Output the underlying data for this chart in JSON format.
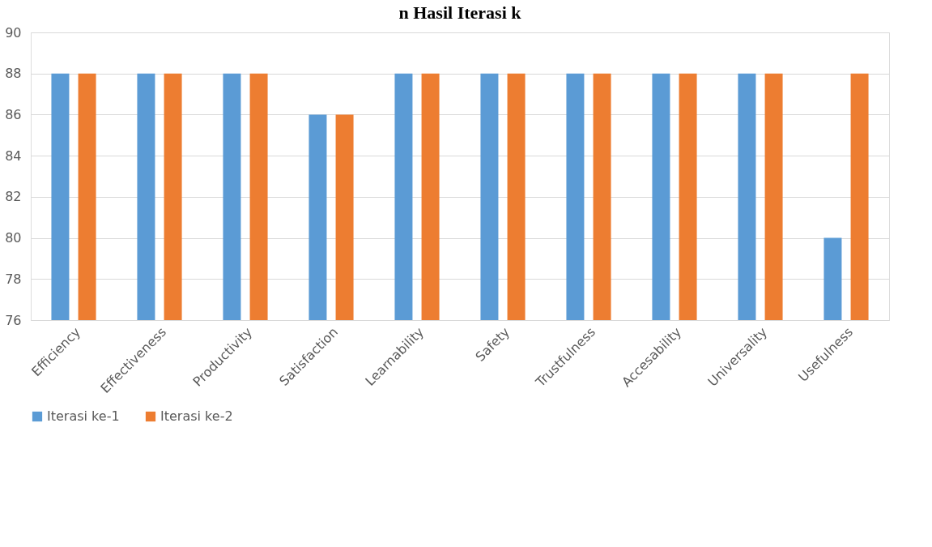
{
  "chart_data": {
    "type": "bar",
    "title": "n Hasil Iterasi k",
    "categories": [
      "Efficiency",
      "Effectiveness",
      "Productivity",
      "Satisfaction",
      "Learnability",
      "Safety",
      "Trustfulness",
      "Accesability",
      "Universality",
      "Usefulness"
    ],
    "series": [
      {
        "name": "Iterasi ke-1",
        "color": "#5b9bd5",
        "values": [
          88,
          88,
          88,
          86,
          88,
          88,
          88,
          88,
          88,
          80
        ]
      },
      {
        "name": "Iterasi ke-2",
        "color": "#ed7d31",
        "values": [
          88,
          88,
          88,
          86,
          88,
          88,
          88,
          88,
          88,
          88
        ]
      }
    ],
    "ylim": [
      76,
      90
    ],
    "yticks": [
      76,
      78,
      80,
      82,
      84,
      86,
      88,
      90
    ],
    "grid": "y",
    "legend": "bottom"
  }
}
